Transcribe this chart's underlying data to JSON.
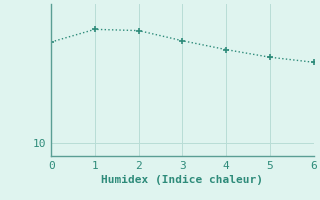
{
  "x": [
    0,
    1,
    2,
    3,
    4,
    5,
    6
  ],
  "y": [
    26.0,
    28.0,
    27.8,
    26.2,
    24.8,
    23.6,
    22.8
  ],
  "line_color": "#2e8b7a",
  "marker": "+",
  "marker_size": 5,
  "marker_lw": 1.2,
  "background_color": "#dff4ef",
  "grid_color": "#b8ddd6",
  "axis_color": "#5a9e94",
  "xlabel": "Humidex (Indice chaleur)",
  "xlabel_fontsize": 8,
  "xlim": [
    0,
    6
  ],
  "ylim": [
    8,
    32
  ],
  "yticks": [
    10
  ],
  "xticks": [
    0,
    1,
    2,
    3,
    4,
    5,
    6
  ],
  "tick_fontsize": 8,
  "line_width": 1.0,
  "title_color": "#2e8b7a"
}
